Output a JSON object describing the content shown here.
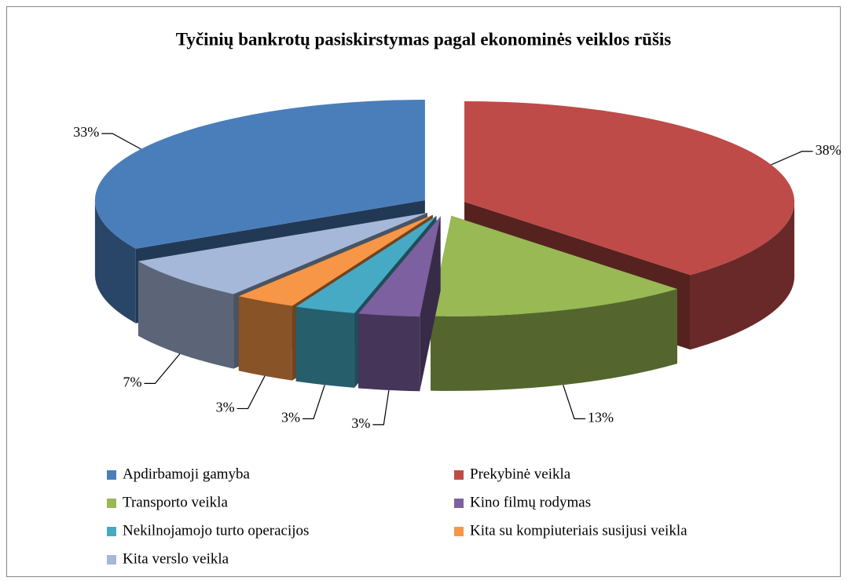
{
  "chart_data": {
    "type": "pie3d",
    "title": "Tyčinių bankrotų pasiskirstymas pagal ekonominės veiklos rūšis",
    "categories": [
      "Apdirbamoji gamyba",
      "Prekybinė veikla",
      "Transporto veikla",
      "Kino filmų rodymas",
      "Nekilnojamojo turto operacijos",
      "Kita su kompiuteriais susijusi veikla",
      "Kita verslo veikla"
    ],
    "values": [
      33,
      38,
      13,
      3,
      3,
      3,
      7
    ],
    "value_labels": [
      "33%",
      "38%",
      "13%",
      "3%",
      "3%",
      "3%",
      "7%"
    ],
    "colors": [
      "#4a7ebb",
      "#be4b48",
      "#98b954",
      "#7d60a0",
      "#46aac5",
      "#f79646",
      "#a5b8d9"
    ],
    "legend": "bottom"
  }
}
